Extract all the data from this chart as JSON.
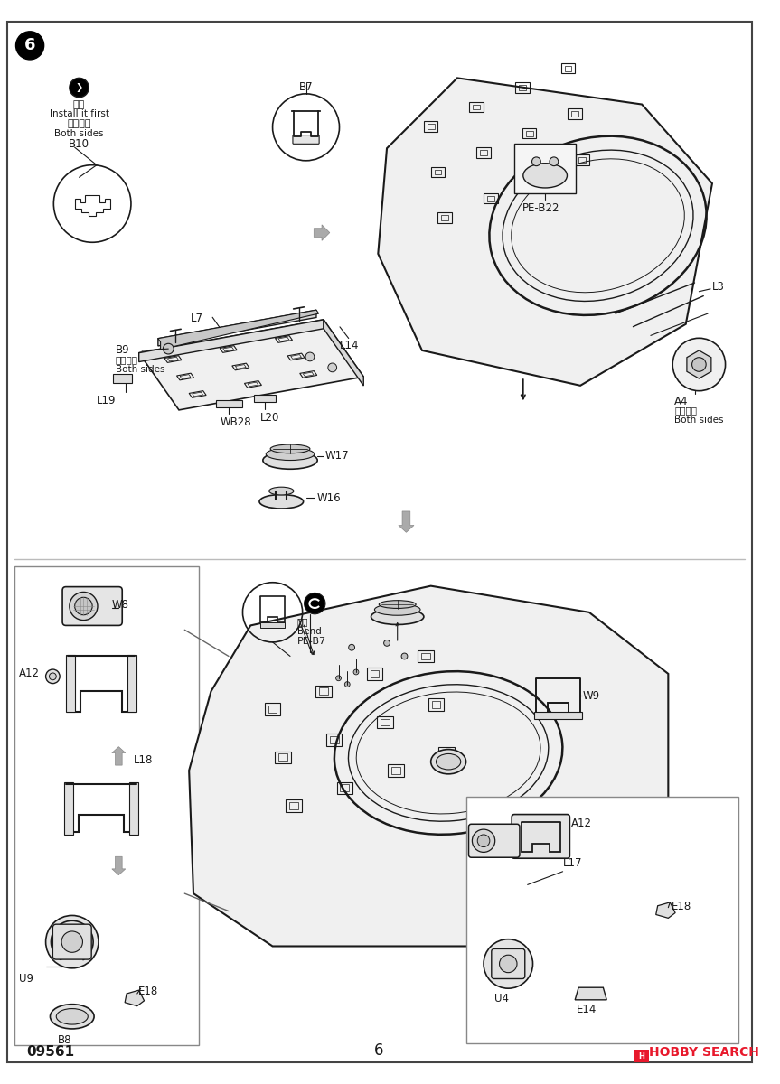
{
  "bg_color": "#ffffff",
  "border_color": "#555555",
  "line_color": "#1a1a1a",
  "gray_color": "#888888",
  "light_gray": "#cccccc",
  "page_number": "6",
  "step_number": "6",
  "part_number": "09561",
  "watermark": "HOBBY SEARCH",
  "watermark_color": "#e8192c",
  "title_note": "Install it first",
  "title_note2": "Both sides",
  "kanji1": "先装",
  "kanji2": "対側相同",
  "kanji3": "弯曲",
  "bend_text": "Bend"
}
